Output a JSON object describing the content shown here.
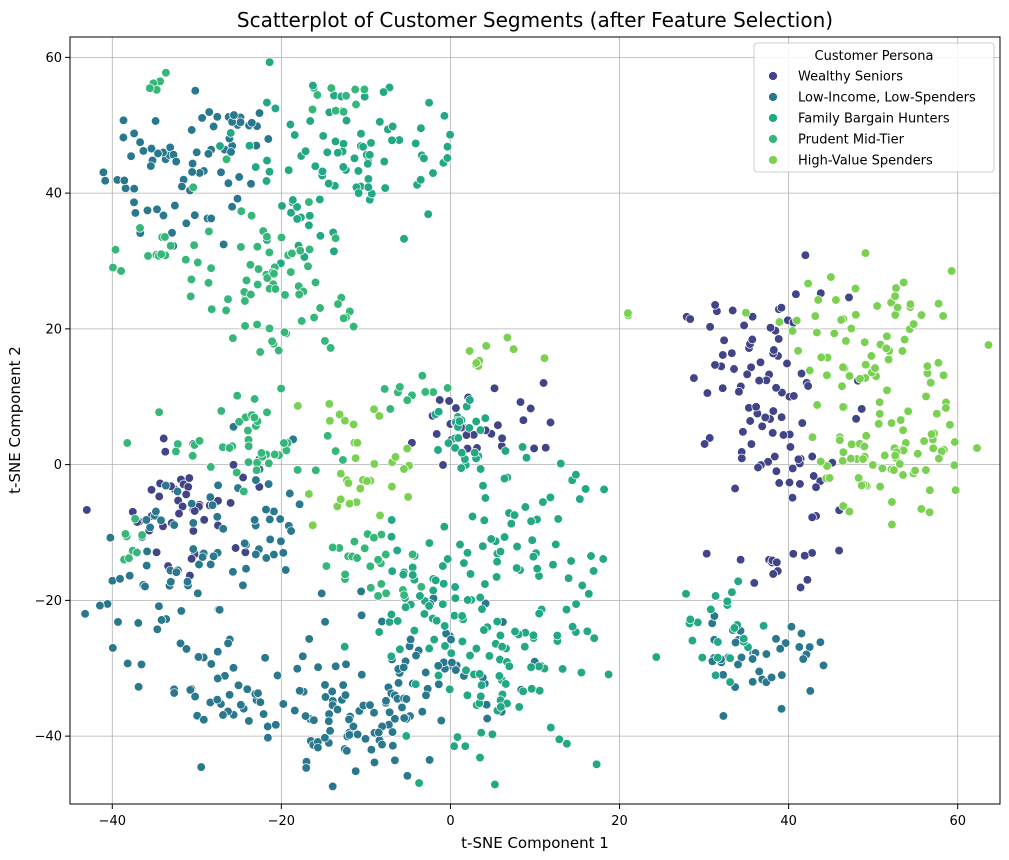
{
  "chart_data": {
    "type": "scatter",
    "title": "Scatterplot of Customer Segments (after Feature Selection)",
    "xlabel": "t-SNE Component 1",
    "ylabel": "t-SNE Component 2",
    "xlim": [
      -45,
      65
    ],
    "ylim": [
      -50,
      63
    ],
    "xticks": [
      -40,
      -20,
      0,
      20,
      40,
      60
    ],
    "yticks": [
      -40,
      -20,
      0,
      20,
      40,
      60
    ],
    "grid": true,
    "legend": {
      "title": "Customer Persona",
      "placement": "top-right"
    },
    "series": [
      {
        "name": "Wealthy Seniors",
        "color": "#414487",
        "clusters": [
          {
            "cx": 37,
            "cy": 13,
            "sx": 5,
            "sy": 6,
            "n": 70
          },
          {
            "cx": 40,
            "cy": -2,
            "sx": 3,
            "sy": 3,
            "n": 25
          },
          {
            "cx": 38,
            "cy": -15,
            "sx": 3,
            "sy": 2,
            "n": 15
          },
          {
            "cx": -30,
            "cy": -6,
            "sx": 4,
            "sy": 5,
            "n": 45
          },
          {
            "cx": 4,
            "cy": 6,
            "sx": 5,
            "sy": 3,
            "n": 30
          }
        ]
      },
      {
        "name": "Low-Income, Low-Spenders",
        "color": "#2a788e",
        "clusters": [
          {
            "cx": -33,
            "cy": 44,
            "sx": 4,
            "sy": 6,
            "n": 60
          },
          {
            "cx": -25,
            "cy": 49,
            "sx": 3,
            "sy": 2,
            "n": 15
          },
          {
            "cx": -33,
            "cy": -15,
            "sx": 5,
            "sy": 6,
            "n": 60
          },
          {
            "cx": -22,
            "cy": -8,
            "sx": 3,
            "sy": 5,
            "n": 25
          },
          {
            "cx": -27,
            "cy": -33,
            "sx": 4,
            "sy": 4,
            "n": 40
          },
          {
            "cx": -12,
            "cy": -38,
            "sx": 7,
            "sy": 5,
            "n": 80
          },
          {
            "cx": -5,
            "cy": -30,
            "sx": 6,
            "sy": 5,
            "n": 50
          },
          {
            "cx": 37,
            "cy": -28,
            "sx": 4,
            "sy": 3,
            "n": 40
          }
        ]
      },
      {
        "name": "Family Bargain Hunters",
        "color": "#22a884",
        "clusters": [
          {
            "cx": -11,
            "cy": 45,
            "sx": 7,
            "sy": 5,
            "n": 80
          },
          {
            "cx": -18,
            "cy": 35,
            "sx": 2,
            "sy": 3,
            "n": 15
          },
          {
            "cx": 8,
            "cy": -12,
            "sx": 5,
            "sy": 7,
            "n": 60
          },
          {
            "cx": 6,
            "cy": -30,
            "sx": 6,
            "sy": 7,
            "n": 80
          },
          {
            "cx": -3,
            "cy": -18,
            "sx": 4,
            "sy": 5,
            "n": 40
          },
          {
            "cx": 2,
            "cy": 4,
            "sx": 2,
            "sy": 4,
            "n": 25
          },
          {
            "cx": 32,
            "cy": -24,
            "sx": 3,
            "sy": 4,
            "n": 25
          }
        ]
      },
      {
        "name": "Prudent Mid-Tier",
        "color": "#35b779",
        "clusters": [
          {
            "cx": -22,
            "cy": 28,
            "sx": 4,
            "sy": 6,
            "n": 60
          },
          {
            "cx": -35,
            "cy": 32,
            "sx": 3,
            "sy": 2,
            "n": 15
          },
          {
            "cx": -35,
            "cy": 56,
            "sx": 1,
            "sy": 1,
            "n": 5
          },
          {
            "cx": -12,
            "cy": 54,
            "sx": 2,
            "sy": 2,
            "n": 10
          },
          {
            "cx": -22,
            "cy": 3,
            "sx": 6,
            "sy": 3,
            "n": 45
          },
          {
            "cx": -10,
            "cy": -15,
            "sx": 3,
            "sy": 3,
            "n": 25
          },
          {
            "cx": -38,
            "cy": -12,
            "sx": 1,
            "sy": 3,
            "n": 8
          },
          {
            "cx": -13,
            "cy": 22,
            "sx": 3,
            "sy": 2,
            "n": 10
          },
          {
            "cx": -3,
            "cy": 11,
            "sx": 2,
            "sy": 1,
            "n": 10
          }
        ]
      },
      {
        "name": "High-Value Spenders",
        "color": "#7ad151",
        "clusters": [
          {
            "cx": 50,
            "cy": 18,
            "sx": 5,
            "sy": 5,
            "n": 70
          },
          {
            "cx": 52,
            "cy": 1,
            "sx": 5,
            "sy": 4,
            "n": 70
          },
          {
            "cx": -10,
            "cy": -3,
            "sx": 3,
            "sy": 3,
            "n": 25
          },
          {
            "cx": 4,
            "cy": 15,
            "sx": 2,
            "sy": 2,
            "n": 10
          },
          {
            "cx": -13,
            "cy": 8,
            "sx": 2,
            "sy": 1,
            "n": 8
          },
          {
            "cx": 21,
            "cy": 22,
            "sx": 0.3,
            "sy": 0.3,
            "n": 2
          }
        ]
      }
    ]
  }
}
